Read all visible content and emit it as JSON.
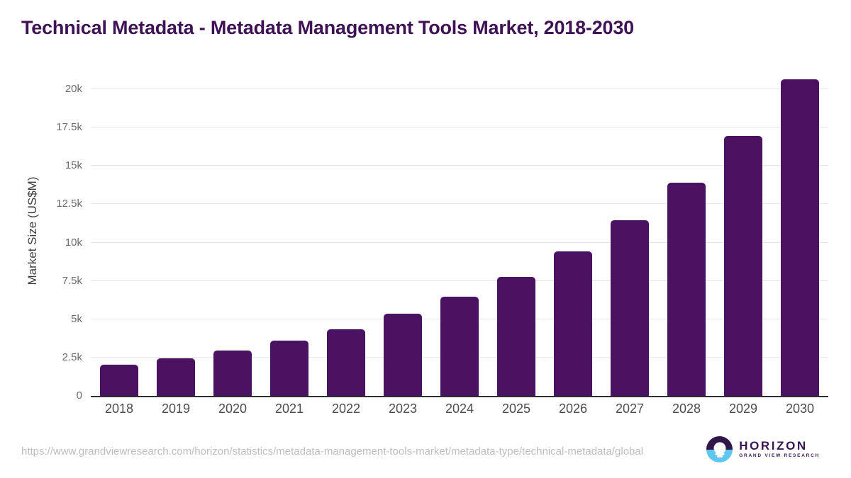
{
  "title": "Technical Metadata - Metadata Management Tools Market, 2018-2030",
  "chart_data": {
    "type": "bar",
    "title": "Technical Metadata - Metadata Management Tools Market, 2018-2030",
    "categories": [
      "2018",
      "2019",
      "2020",
      "2021",
      "2022",
      "2023",
      "2024",
      "2025",
      "2026",
      "2027",
      "2028",
      "2029",
      "2030"
    ],
    "values": [
      2050,
      2450,
      2950,
      3600,
      4350,
      5350,
      6450,
      7750,
      9400,
      11450,
      13900,
      16950,
      20650
    ],
    "xlabel": "",
    "ylabel": "Market Size (US$M)",
    "ylim": [
      0,
      21200
    ],
    "grid": true,
    "legend": false,
    "yticks": [
      {
        "value": 0,
        "label": "0"
      },
      {
        "value": 2500,
        "label": "2.5k"
      },
      {
        "value": 5000,
        "label": "5k"
      },
      {
        "value": 7500,
        "label": "7.5k"
      },
      {
        "value": 10000,
        "label": "10k"
      },
      {
        "value": 12500,
        "label": "12.5k"
      },
      {
        "value": 15000,
        "label": "15k"
      },
      {
        "value": 17500,
        "label": "17.5k"
      },
      {
        "value": 20000,
        "label": "20k"
      }
    ]
  },
  "colors": {
    "bar": "#4a1261",
    "title": "#3e1254",
    "logo_purple": "#30194a",
    "logo_blue": "#5ec7f0",
    "gridline": "#e8e8e8"
  },
  "footer": {
    "source_url": "https://www.grandviewresearch.com/horizon/statistics/metadata-management-tools-market/metadata-type/technical-metadata/global",
    "logo_name": "HORIZON",
    "logo_subtitle": "GRAND VIEW RESEARCH"
  }
}
